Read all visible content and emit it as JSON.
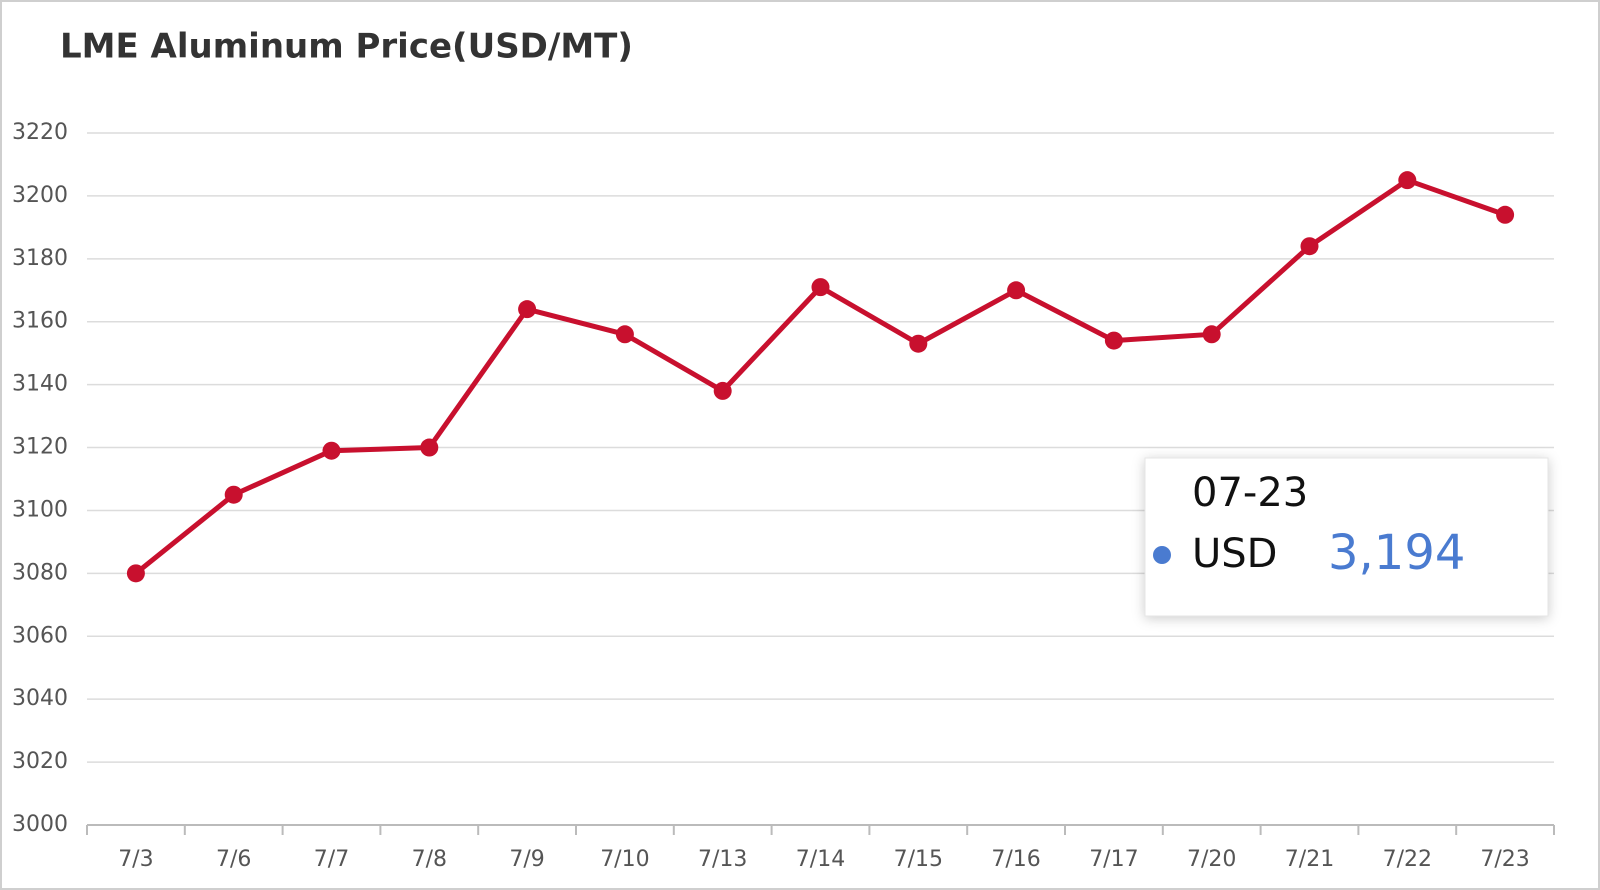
{
  "chart_data": {
    "type": "line",
    "title": "LME Aluminum Price(USD/MT)",
    "categories": [
      "7/3",
      "7/6",
      "7/7",
      "7/8",
      "7/9",
      "7/10",
      "7/13",
      "7/14",
      "7/15",
      "7/16",
      "7/17",
      "7/20",
      "7/21",
      "7/22",
      "7/23"
    ],
    "values": [
      3080,
      3105,
      3119,
      3120,
      3164,
      3156,
      3138,
      3171,
      3153,
      3170,
      3154,
      3156,
      3184,
      3205,
      3194
    ],
    "color": "#c8102e",
    "ylim": [
      3000,
      3220
    ],
    "yticks": [
      3000,
      3020,
      3040,
      3060,
      3080,
      3100,
      3120,
      3140,
      3160,
      3180,
      3200,
      3220
    ],
    "grid": true,
    "tooltip": {
      "title": "07-23",
      "name": "USD",
      "value_label": "3,194",
      "dot_color": "#4a7bd0"
    }
  }
}
